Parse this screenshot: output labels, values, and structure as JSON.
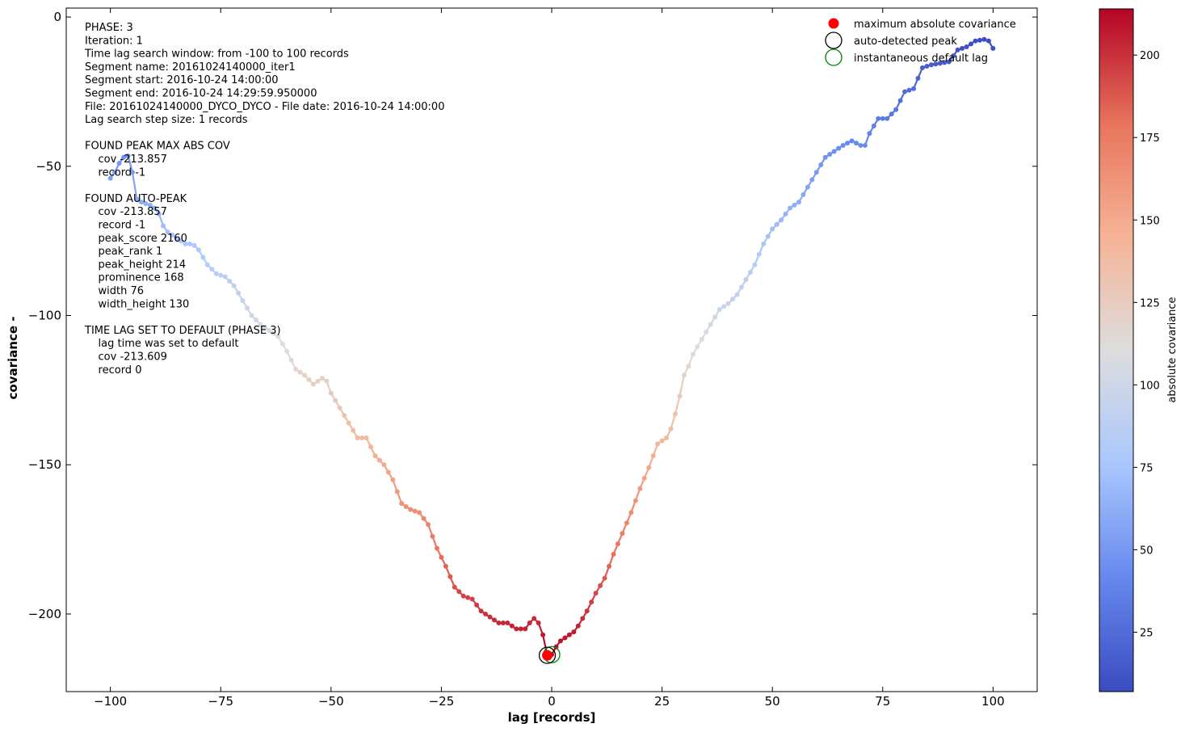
{
  "chart_data": {
    "type": "line",
    "xlabel": "lag [records]",
    "ylabel": "covariance  -",
    "xlim": [
      -110,
      110
    ],
    "ylim": [
      -226,
      3
    ],
    "x_ticks": [
      -100,
      -75,
      -50,
      -25,
      0,
      25,
      50,
      75,
      100
    ],
    "y_ticks": [
      0,
      -50,
      -100,
      -150,
      -200
    ],
    "colorbar": {
      "label": "absolute covariance",
      "range": [
        7,
        214
      ],
      "ticks": [
        25,
        50,
        75,
        100,
        125,
        150,
        175,
        200
      ],
      "colormap": "coolwarm",
      "colors": [
        "#3b4cc0",
        "#6688ee",
        "#aac7fd",
        "#dddddd",
        "#f6b396",
        "#e7745b",
        "#b40426"
      ]
    },
    "grid": false,
    "legend_position": "top-right",
    "legend": [
      {
        "label": "maximum absolute covariance",
        "marker": "filled-circle",
        "color": "#ff0000"
      },
      {
        "label": "auto-detected peak",
        "marker": "open-circle",
        "color": "#000000"
      },
      {
        "label": "instantaneous default lag",
        "marker": "open-circle",
        "color": "#008000"
      }
    ],
    "markers": {
      "max_abs_cov": {
        "x": -1,
        "y": -213.857
      },
      "auto_peak": {
        "x": -1,
        "y": -213.857
      },
      "default_lag": {
        "x": 0,
        "y": -213.609
      }
    },
    "anchors": [
      [
        -100,
        -54
      ],
      [
        -99,
        -52
      ],
      [
        -98,
        -49
      ],
      [
        -97,
        -47
      ],
      [
        -96,
        -46.5
      ],
      [
        -95,
        -52
      ],
      [
        -94,
        -61
      ],
      [
        -93,
        -62
      ],
      [
        -92,
        -62.5
      ],
      [
        -91,
        -63
      ],
      [
        -90,
        -64
      ],
      [
        -89,
        -66
      ],
      [
        -88,
        -70
      ],
      [
        -87,
        -72
      ],
      [
        -86,
        -73
      ],
      [
        -85,
        -74.5
      ],
      [
        -84,
        -75
      ],
      [
        -83,
        -76
      ],
      [
        -82,
        -76
      ],
      [
        -81,
        -76.5
      ],
      [
        -80,
        -78
      ],
      [
        -78,
        -83
      ],
      [
        -76,
        -86
      ],
      [
        -74,
        -87
      ],
      [
        -72,
        -90
      ],
      [
        -70,
        -95
      ],
      [
        -68,
        -100
      ],
      [
        -66,
        -103
      ],
      [
        -64,
        -105
      ],
      [
        -62,
        -107
      ],
      [
        -60,
        -112
      ],
      [
        -58,
        -118
      ],
      [
        -56,
        -120
      ],
      [
        -54,
        -123
      ],
      [
        -52,
        -121
      ],
      [
        -51,
        -122
      ],
      [
        -50,
        -126
      ],
      [
        -48,
        -131
      ],
      [
        -46,
        -136
      ],
      [
        -44,
        -141
      ],
      [
        -42,
        -141
      ],
      [
        -40,
        -147
      ],
      [
        -38,
        -150
      ],
      [
        -36,
        -155
      ],
      [
        -34,
        -163
      ],
      [
        -32,
        -165
      ],
      [
        -30,
        -166
      ],
      [
        -28,
        -170
      ],
      [
        -26,
        -178
      ],
      [
        -24,
        -184
      ],
      [
        -22,
        -191
      ],
      [
        -20,
        -194
      ],
      [
        -18,
        -195
      ],
      [
        -16,
        -199
      ],
      [
        -14,
        -201
      ],
      [
        -12,
        -203
      ],
      [
        -10,
        -203
      ],
      [
        -8,
        -205
      ],
      [
        -6,
        -205
      ],
      [
        -5,
        -203
      ],
      [
        -4,
        -201.5
      ],
      [
        -3,
        -203
      ],
      [
        -2,
        -207
      ],
      [
        -1,
        -213.857
      ],
      [
        0,
        -213.609
      ],
      [
        1,
        -211
      ],
      [
        2,
        -209
      ],
      [
        3,
        -208
      ],
      [
        4,
        -207
      ],
      [
        5,
        -206
      ],
      [
        6,
        -204
      ],
      [
        8,
        -199
      ],
      [
        10,
        -193
      ],
      [
        12,
        -188
      ],
      [
        14,
        -180
      ],
      [
        16,
        -173
      ],
      [
        18,
        -166
      ],
      [
        20,
        -158
      ],
      [
        22,
        -151
      ],
      [
        24,
        -143
      ],
      [
        26,
        -141
      ],
      [
        27,
        -138
      ],
      [
        28,
        -133
      ],
      [
        29,
        -127
      ],
      [
        30,
        -120
      ],
      [
        31,
        -117
      ],
      [
        32,
        -113
      ],
      [
        34,
        -108
      ],
      [
        36,
        -103
      ],
      [
        38,
        -98
      ],
      [
        40,
        -96
      ],
      [
        42,
        -93
      ],
      [
        44,
        -88
      ],
      [
        46,
        -83
      ],
      [
        48,
        -76
      ],
      [
        50,
        -71
      ],
      [
        52,
        -68
      ],
      [
        54,
        -64
      ],
      [
        56,
        -62
      ],
      [
        58,
        -57
      ],
      [
        60,
        -52
      ],
      [
        62,
        -47
      ],
      [
        64,
        -45
      ],
      [
        66,
        -43
      ],
      [
        68,
        -41.5
      ],
      [
        70,
        -43
      ],
      [
        71,
        -43
      ],
      [
        72,
        -39
      ],
      [
        74,
        -34
      ],
      [
        76,
        -34
      ],
      [
        78,
        -31
      ],
      [
        80,
        -25
      ],
      [
        82,
        -24
      ],
      [
        84,
        -17
      ],
      [
        86,
        -16
      ],
      [
        88,
        -15.5
      ],
      [
        90,
        -15
      ],
      [
        92,
        -11
      ],
      [
        94,
        -10
      ],
      [
        96,
        -8
      ],
      [
        98,
        -7.5
      ],
      [
        99,
        -8
      ],
      [
        100,
        -10.5
      ]
    ]
  },
  "info_text": [
    "PHASE: 3",
    "Iteration: 1",
    "Time lag search window: from -100 to 100 records",
    "Segment name: 20161024140000_iter1",
    "Segment start: 2016-10-24 14:00:00",
    "Segment end: 2016-10-24 14:29:59.950000",
    "File: 20161024140000_DYCO_DYCO - File date: 2016-10-24 14:00:00",
    "Lag search step size: 1 records",
    "",
    "FOUND PEAK MAX ABS COV",
    "    cov -213.857",
    "    record -1",
    "",
    "FOUND AUTO-PEAK",
    "    cov -213.857",
    "    record -1",
    "    peak_score 2160",
    "    peak_rank 1",
    "    peak_height 214",
    "    prominence 168",
    "    width 76",
    "    width_height 130",
    "",
    "TIME LAG SET TO DEFAULT (PHASE 3)",
    "    lag time was set to default",
    "    cov -213.609",
    "    record 0"
  ]
}
